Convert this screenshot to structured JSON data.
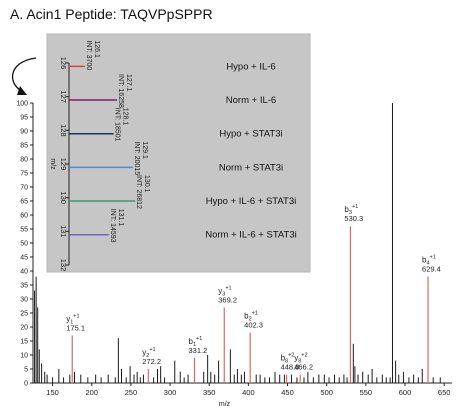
{
  "figure": {
    "title": "A. Acin1 Peptide: TAQVPpSPPR"
  },
  "chart_data": [
    {
      "type": "bar",
      "name": "ms2-spectrum",
      "xlabel": "m/z",
      "ylabel": "",
      "xlim": [
        125,
        660
      ],
      "ylim": [
        0,
        100
      ],
      "xticks": [
        150,
        200,
        250,
        300,
        350,
        400,
        450,
        500,
        550,
        600,
        650
      ],
      "yticks": [
        0,
        5,
        10,
        15,
        20,
        25,
        30,
        35,
        40,
        45,
        50,
        55,
        60,
        65,
        70,
        75,
        80,
        85,
        90,
        95,
        100
      ],
      "colors": {
        "unassigned": "#1a1a1a",
        "fragment": "#e06666"
      },
      "peaks": [
        {
          "mz": 127,
          "i": 33
        },
        {
          "mz": 129,
          "i": 38
        },
        {
          "mz": 131,
          "i": 27
        },
        {
          "mz": 133,
          "i": 12
        },
        {
          "mz": 136,
          "i": 7
        },
        {
          "mz": 140,
          "i": 4
        },
        {
          "mz": 143,
          "i": 3
        },
        {
          "mz": 150,
          "i": 2
        },
        {
          "mz": 158,
          "i": 5
        },
        {
          "mz": 164,
          "i": 2
        },
        {
          "mz": 172,
          "i": 3
        },
        {
          "mz": 178,
          "i": 4
        },
        {
          "mz": 186,
          "i": 3
        },
        {
          "mz": 195,
          "i": 2
        },
        {
          "mz": 205,
          "i": 3
        },
        {
          "mz": 212,
          "i": 2
        },
        {
          "mz": 221,
          "i": 3
        },
        {
          "mz": 230,
          "i": 2
        },
        {
          "mz": 234,
          "i": 16
        },
        {
          "mz": 238,
          "i": 5
        },
        {
          "mz": 244,
          "i": 2
        },
        {
          "mz": 249,
          "i": 6
        },
        {
          "mz": 254,
          "i": 3
        },
        {
          "mz": 258,
          "i": 4
        },
        {
          "mz": 262,
          "i": 2
        },
        {
          "mz": 266,
          "i": 3
        },
        {
          "mz": 279,
          "i": 2
        },
        {
          "mz": 284,
          "i": 5
        },
        {
          "mz": 288,
          "i": 6
        },
        {
          "mz": 293,
          "i": 2
        },
        {
          "mz": 306,
          "i": 8
        },
        {
          "mz": 313,
          "i": 4
        },
        {
          "mz": 318,
          "i": 2
        },
        {
          "mz": 323,
          "i": 3
        },
        {
          "mz": 343,
          "i": 4
        },
        {
          "mz": 348,
          "i": 10
        },
        {
          "mz": 352,
          "i": 4
        },
        {
          "mz": 357,
          "i": 3
        },
        {
          "mz": 362,
          "i": 8
        },
        {
          "mz": 377,
          "i": 12
        },
        {
          "mz": 382,
          "i": 3
        },
        {
          "mz": 386,
          "i": 5
        },
        {
          "mz": 391,
          "i": 3
        },
        {
          "mz": 395,
          "i": 4
        },
        {
          "mz": 410,
          "i": 3
        },
        {
          "mz": 415,
          "i": 3
        },
        {
          "mz": 421,
          "i": 2
        },
        {
          "mz": 427,
          "i": 2
        },
        {
          "mz": 434,
          "i": 4
        },
        {
          "mz": 440,
          "i": 3
        },
        {
          "mz": 446,
          "i": 3
        },
        {
          "mz": 455,
          "i": 3
        },
        {
          "mz": 462,
          "i": 2
        },
        {
          "mz": 471,
          "i": 2
        },
        {
          "mz": 476,
          "i": 4
        },
        {
          "mz": 483,
          "i": 2
        },
        {
          "mz": 490,
          "i": 3
        },
        {
          "mz": 497,
          "i": 3
        },
        {
          "mz": 503,
          "i": 2
        },
        {
          "mz": 510,
          "i": 3
        },
        {
          "mz": 516,
          "i": 2
        },
        {
          "mz": 522,
          "i": 3
        },
        {
          "mz": 526,
          "i": 2
        },
        {
          "mz": 534,
          "i": 14
        },
        {
          "mz": 536,
          "i": 6
        },
        {
          "mz": 540,
          "i": 3
        },
        {
          "mz": 546,
          "i": 4
        },
        {
          "mz": 553,
          "i": 3
        },
        {
          "mz": 558,
          "i": 5
        },
        {
          "mz": 564,
          "i": 2
        },
        {
          "mz": 571,
          "i": 3
        },
        {
          "mz": 576,
          "i": 2
        },
        {
          "mz": 581,
          "i": 2
        },
        {
          "mz": 584,
          "i": 100
        },
        {
          "mz": 588,
          "i": 8
        },
        {
          "mz": 592,
          "i": 3
        },
        {
          "mz": 598,
          "i": 4
        },
        {
          "mz": 605,
          "i": 2
        },
        {
          "mz": 611,
          "i": 3
        },
        {
          "mz": 617,
          "i": 2
        },
        {
          "mz": 622,
          "i": 5
        },
        {
          "mz": 636,
          "i": 2
        },
        {
          "mz": 645,
          "i": 2
        }
      ],
      "fragments": [
        {
          "mz": 175.1,
          "i": 17,
          "ion": "y",
          "sub": "1",
          "sup": "+1",
          "mzlabel": "175.1"
        },
        {
          "mz": 272.2,
          "i": 5,
          "ion": "y",
          "sub": "2",
          "sup": "+1",
          "mzlabel": "272.2"
        },
        {
          "mz": 331.2,
          "i": 9,
          "ion": "b",
          "sub": "1",
          "sup": "+1",
          "mzlabel": "331.2"
        },
        {
          "mz": 369.2,
          "i": 27,
          "ion": "y",
          "sub": "3",
          "sup": "+1",
          "mzlabel": "369.2"
        },
        {
          "mz": 402.3,
          "i": 18,
          "ion": "b",
          "sub": "2",
          "sup": "+1",
          "mzlabel": "402.3"
        },
        {
          "mz": 448.8,
          "i": 3,
          "ion": "b",
          "sub": "8",
          "sup": "+2",
          "mzlabel": "448.8"
        },
        {
          "mz": 466.2,
          "i": 3,
          "ion": "y",
          "sub": "8",
          "sup": "+2",
          "mzlabel": "466.2"
        },
        {
          "mz": 530.3,
          "i": 56,
          "ion": "b",
          "sub": "3",
          "sup": "+1",
          "mzlabel": "530.3"
        },
        {
          "mz": 629.4,
          "i": 38,
          "ion": "b",
          "sub": "4",
          "sup": "+1",
          "mzlabel": "629.4"
        }
      ]
    },
    {
      "type": "line",
      "name": "reporter-ion-inset",
      "xlabel": "m/z",
      "xticks": [
        126,
        127,
        128,
        129,
        130,
        131,
        132
      ],
      "reporters": [
        {
          "mz": 126.1,
          "channel": "126.1",
          "int": "INT: 3700",
          "condition": "Hypo + IL-6",
          "color": "#e03c3c",
          "len": 0.33
        },
        {
          "mz": 127.1,
          "channel": "127.1",
          "int": "INT: 16258",
          "condition": "Norm + IL-6",
          "color": "#7b1f66",
          "len": 1.0
        },
        {
          "mz": 128.1,
          "channel": "128.1",
          "int": "INT: 18501",
          "condition": "Hypo + STAT3i",
          "color": "#1f2f5a",
          "len": 0.93
        },
        {
          "mz": 129.1,
          "channel": "129.1",
          "int": "INT: 20015",
          "condition": "Norm + STAT3i",
          "color": "#4a8fd4",
          "len": 1.33
        },
        {
          "mz": 130.1,
          "channel": "130.1",
          "int": "INT: 26812",
          "condition": "Hypo + IL-6 + STAT3i",
          "color": "#3c9a6e",
          "len": 1.38
        },
        {
          "mz": 131.1,
          "channel": "131.1",
          "int": "INT: 14593",
          "condition": "Norm + IL-6 + STAT3i",
          "color": "#6e6ab5",
          "len": 0.83
        }
      ]
    }
  ]
}
